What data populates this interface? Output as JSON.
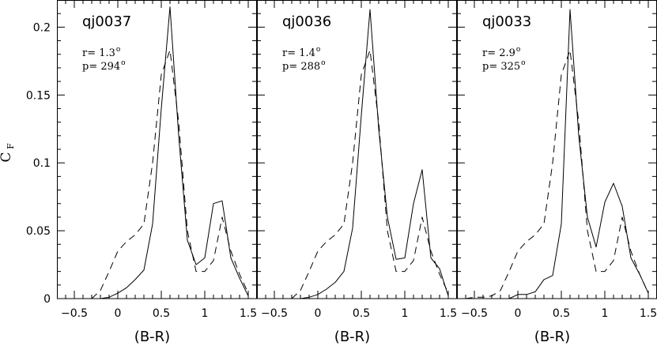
{
  "chart_data": {
    "type": "line",
    "ylabel_main": "C",
    "ylabel_sub": "F",
    "xlabel": "(B-R)",
    "xlim": [
      -0.7,
      1.6
    ],
    "ylim": [
      0,
      0.22
    ],
    "x_ticks": [
      -0.5,
      0,
      0.5,
      1,
      1.5
    ],
    "x_tick_labels": [
      "−0.5",
      "0",
      "0.5",
      "1",
      "1.5"
    ],
    "y_ticks": [
      0,
      0.05,
      0.1,
      0.15,
      0.2
    ],
    "y_tick_labels": [
      "0",
      "0.05",
      "0.1",
      "0.15",
      "0.2"
    ],
    "series_styles": {
      "solid": {
        "color": "#000000",
        "dash": "none"
      },
      "dashed": {
        "color": "#000000",
        "dash": "9,6"
      }
    },
    "panels": [
      {
        "title": "qj0037",
        "r_label": "r= 1.3",
        "p_label": "p= 294",
        "degree_mark": "o",
        "solid": {
          "x": [
            -0.2,
            -0.1,
            0,
            0.1,
            0.2,
            0.3,
            0.4,
            0.5,
            0.6,
            0.7,
            0.8,
            0.9,
            1.0,
            1.1,
            1.2,
            1.3,
            1.4,
            1.5
          ],
          "y": [
            0,
            0.001,
            0.004,
            0.008,
            0.014,
            0.021,
            0.055,
            0.14,
            0.215,
            0.12,
            0.043,
            0.025,
            0.03,
            0.07,
            0.072,
            0.03,
            0.015,
            0.002
          ]
        },
        "dashed": {
          "x": [
            -0.3,
            -0.2,
            -0.1,
            0,
            0.1,
            0.2,
            0.3,
            0.4,
            0.5,
            0.6,
            0.7,
            0.8,
            0.9,
            1.0,
            1.1,
            1.2,
            1.3,
            1.4,
            1.5
          ],
          "y": [
            0,
            0.006,
            0.02,
            0.035,
            0.042,
            0.047,
            0.055,
            0.1,
            0.165,
            0.183,
            0.13,
            0.05,
            0.02,
            0.02,
            0.028,
            0.06,
            0.035,
            0.018,
            0.004
          ]
        }
      },
      {
        "title": "qj0036",
        "r_label": "r= 1.4",
        "p_label": "p= 288",
        "degree_mark": "o",
        "solid": {
          "x": [
            -0.2,
            -0.1,
            0,
            0.1,
            0.2,
            0.3,
            0.4,
            0.5,
            0.6,
            0.7,
            0.8,
            0.9,
            1.0,
            1.1,
            1.2,
            1.3,
            1.4,
            1.5
          ],
          "y": [
            0,
            0.001,
            0.003,
            0.007,
            0.012,
            0.02,
            0.052,
            0.135,
            0.213,
            0.125,
            0.06,
            0.029,
            0.03,
            0.07,
            0.095,
            0.03,
            0.022,
            0.002
          ]
        },
        "dashed": {
          "x": [
            -0.3,
            -0.2,
            -0.1,
            0,
            0.1,
            0.2,
            0.3,
            0.4,
            0.5,
            0.6,
            0.7,
            0.8,
            0.9,
            1.0,
            1.1,
            1.2,
            1.3,
            1.4,
            1.5
          ],
          "y": [
            0,
            0.006,
            0.02,
            0.035,
            0.042,
            0.047,
            0.055,
            0.1,
            0.165,
            0.183,
            0.13,
            0.05,
            0.02,
            0.02,
            0.028,
            0.06,
            0.035,
            0.018,
            0.004
          ]
        }
      },
      {
        "title": "qj0033",
        "r_label": "r= 2.9",
        "p_label": "p= 325",
        "degree_mark": "o",
        "solid": {
          "x": [
            -0.5,
            -0.4,
            -0.3,
            -0.2,
            -0.1,
            0,
            0.1,
            0.2,
            0.3,
            0.4,
            0.5,
            0.6,
            0.7,
            0.8,
            0.9,
            1.0,
            1.1,
            1.2,
            1.3,
            1.4,
            1.5
          ],
          "y": [
            0,
            0,
            0,
            0,
            0,
            0.003,
            0.003,
            0.005,
            0.014,
            0.017,
            0.055,
            0.213,
            0.12,
            0.06,
            0.038,
            0.071,
            0.085,
            0.068,
            0.03,
            0.018,
            0.004
          ]
        },
        "dashed": {
          "x": [
            -0.6,
            -0.5,
            -0.4,
            -0.3,
            -0.2,
            -0.1,
            0,
            0.1,
            0.2,
            0.3,
            0.4,
            0.5,
            0.6,
            0.7,
            0.8,
            0.9,
            1.0,
            1.1,
            1.2,
            1.3,
            1.4,
            1.5
          ],
          "y": [
            0,
            0.001,
            0.001,
            0.002,
            0.006,
            0.02,
            0.035,
            0.042,
            0.047,
            0.055,
            0.1,
            0.165,
            0.183,
            0.13,
            0.05,
            0.02,
            0.02,
            0.028,
            0.06,
            0.035,
            0.018,
            0.004
          ]
        }
      }
    ]
  }
}
